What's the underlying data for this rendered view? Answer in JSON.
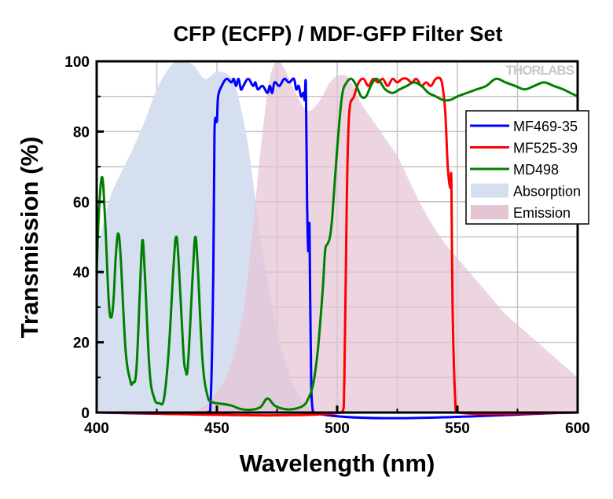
{
  "chart_data": {
    "type": "line",
    "title": "CFP (ECFP) / MDF-GFP Filter Set",
    "xlabel": "Wavelength (nm)",
    "ylabel": "Transmission (%)",
    "xlim": [
      400,
      600
    ],
    "ylim": [
      0,
      100
    ],
    "xticks": [
      400,
      450,
      500,
      550,
      600
    ],
    "yticks": [
      0,
      20,
      40,
      60,
      80,
      100
    ],
    "grid": true,
    "legend_position": "right",
    "watermark": "THORLABS",
    "series": [
      {
        "name": "Absorption",
        "kind": "area",
        "color": "#d6dff0",
        "points": [
          [
            400,
            45
          ],
          [
            405,
            60
          ],
          [
            410,
            68
          ],
          [
            415,
            75
          ],
          [
            420,
            83
          ],
          [
            425,
            92
          ],
          [
            430,
            98
          ],
          [
            434,
            100
          ],
          [
            440,
            99
          ],
          [
            445,
            95
          ],
          [
            450,
            97
          ],
          [
            455,
            96
          ],
          [
            458,
            92
          ],
          [
            462,
            80
          ],
          [
            465,
            66
          ],
          [
            468,
            50
          ],
          [
            471,
            38
          ],
          [
            474,
            27
          ],
          [
            477,
            18
          ],
          [
            480,
            11
          ],
          [
            483,
            6
          ],
          [
            486,
            3
          ],
          [
            490,
            0
          ]
        ]
      },
      {
        "name": "Emission",
        "kind": "area",
        "color": "#e4c3d3",
        "points": [
          [
            440,
            0
          ],
          [
            445,
            2
          ],
          [
            450,
            6
          ],
          [
            455,
            12
          ],
          [
            460,
            25
          ],
          [
            463,
            40
          ],
          [
            466,
            60
          ],
          [
            469,
            80
          ],
          [
            472,
            95
          ],
          [
            475,
            100
          ],
          [
            478,
            98
          ],
          [
            482,
            92
          ],
          [
            486,
            87
          ],
          [
            489,
            86
          ],
          [
            493,
            89
          ],
          [
            497,
            94
          ],
          [
            501,
            96
          ],
          [
            505,
            95
          ],
          [
            510,
            88
          ],
          [
            515,
            83
          ],
          [
            520,
            78
          ],
          [
            525,
            73
          ],
          [
            530,
            66
          ],
          [
            535,
            59
          ],
          [
            540,
            53
          ],
          [
            545,
            48
          ],
          [
            550,
            44
          ],
          [
            555,
            40
          ],
          [
            560,
            36
          ],
          [
            565,
            32
          ],
          [
            570,
            28
          ],
          [
            575,
            25
          ],
          [
            580,
            22
          ],
          [
            585,
            19
          ],
          [
            590,
            16
          ],
          [
            595,
            13
          ],
          [
            600,
            10
          ]
        ]
      },
      {
        "name": "MF469-35",
        "kind": "line",
        "color": "#0000ff",
        "points": [
          [
            400,
            0
          ],
          [
            446,
            0
          ],
          [
            447.5,
            5
          ],
          [
            448.5,
            40
          ],
          [
            449,
            80
          ],
          [
            450,
            83
          ],
          [
            450.5,
            90
          ],
          [
            452,
            93
          ],
          [
            454,
            95
          ],
          [
            456,
            94
          ],
          [
            457,
            95
          ],
          [
            458,
            93
          ],
          [
            459,
            95
          ],
          [
            460,
            92
          ],
          [
            461,
            93
          ],
          [
            463,
            95
          ],
          [
            465,
            93
          ],
          [
            466,
            94
          ],
          [
            467,
            92
          ],
          [
            469,
            93
          ],
          [
            471,
            91
          ],
          [
            472,
            93
          ],
          [
            473,
            91
          ],
          [
            474,
            94
          ],
          [
            476,
            93
          ],
          [
            478,
            95
          ],
          [
            480,
            94
          ],
          [
            482,
            95
          ],
          [
            483,
            92
          ],
          [
            484,
            93
          ],
          [
            485,
            90
          ],
          [
            486,
            91
          ],
          [
            486.5,
            89
          ],
          [
            487,
            93
          ],
          [
            487.5,
            60
          ],
          [
            488,
            46
          ],
          [
            488.5,
            53
          ],
          [
            489,
            20
          ],
          [
            490,
            0
          ],
          [
            600,
            0
          ]
        ]
      },
      {
        "name": "MF525-39",
        "kind": "line",
        "color": "#ff0000",
        "points": [
          [
            400,
            0
          ],
          [
            502,
            0
          ],
          [
            503,
            10
          ],
          [
            504,
            60
          ],
          [
            505,
            85
          ],
          [
            507,
            90
          ],
          [
            509,
            94
          ],
          [
            511,
            95
          ],
          [
            513,
            93
          ],
          [
            515,
            95
          ],
          [
            517,
            94
          ],
          [
            519,
            95
          ],
          [
            521,
            93
          ],
          [
            523,
            95
          ],
          [
            525,
            94
          ],
          [
            527,
            95
          ],
          [
            529,
            95
          ],
          [
            531,
            94
          ],
          [
            533,
            95
          ],
          [
            535,
            93
          ],
          [
            537,
            94
          ],
          [
            539,
            93
          ],
          [
            541,
            95
          ],
          [
            543,
            95
          ],
          [
            544,
            92
          ],
          [
            545,
            85
          ],
          [
            546,
            70
          ],
          [
            547,
            64
          ],
          [
            547.5,
            66
          ],
          [
            548,
            30
          ],
          [
            549,
            5
          ],
          [
            550,
            0
          ],
          [
            600,
            0
          ]
        ]
      },
      {
        "name": "MD498",
        "kind": "line",
        "color": "#008000",
        "points": [
          [
            400,
            40
          ],
          [
            401,
            58
          ],
          [
            402.3,
            67
          ],
          [
            403.5,
            55
          ],
          [
            405,
            32
          ],
          [
            406,
            27
          ],
          [
            407,
            32
          ],
          [
            408,
            45
          ],
          [
            409,
            51
          ],
          [
            410,
            44
          ],
          [
            412,
            18
          ],
          [
            414,
            9
          ],
          [
            415,
            8.5
          ],
          [
            416.5,
            12
          ],
          [
            418,
            35
          ],
          [
            419,
            49
          ],
          [
            420,
            40
          ],
          [
            422,
            12
          ],
          [
            424,
            4
          ],
          [
            426,
            2.7
          ],
          [
            428,
            4
          ],
          [
            430,
            18
          ],
          [
            432,
            42
          ],
          [
            433,
            50
          ],
          [
            434,
            44
          ],
          [
            436,
            18
          ],
          [
            437,
            12
          ],
          [
            438,
            14
          ],
          [
            440,
            40
          ],
          [
            441,
            50
          ],
          [
            442,
            42
          ],
          [
            444,
            15
          ],
          [
            446,
            5
          ],
          [
            448,
            3
          ],
          [
            452,
            2.5
          ],
          [
            456,
            2
          ],
          [
            460,
            1
          ],
          [
            464,
            0.8
          ],
          [
            468,
            1.5
          ],
          [
            471,
            4
          ],
          [
            474,
            2
          ],
          [
            478,
            1
          ],
          [
            482,
            1
          ],
          [
            486,
            2
          ],
          [
            488,
            4
          ],
          [
            490,
            8
          ],
          [
            492,
            18
          ],
          [
            494,
            35
          ],
          [
            495,
            46
          ],
          [
            496,
            48
          ],
          [
            497,
            50
          ],
          [
            498,
            56
          ],
          [
            500,
            75
          ],
          [
            502,
            90
          ],
          [
            504,
            94
          ],
          [
            506,
            95
          ],
          [
            508,
            93
          ],
          [
            510,
            90
          ],
          [
            512,
            90
          ],
          [
            514,
            93
          ],
          [
            516,
            95
          ],
          [
            518,
            94
          ],
          [
            520,
            92
          ],
          [
            523,
            91
          ],
          [
            526,
            92
          ],
          [
            529,
            93
          ],
          [
            532,
            94
          ],
          [
            535,
            93
          ],
          [
            538,
            91
          ],
          [
            541,
            90
          ],
          [
            544,
            89
          ],
          [
            547,
            89
          ],
          [
            550,
            90
          ],
          [
            554,
            91
          ],
          [
            558,
            92
          ],
          [
            562,
            93
          ],
          [
            566,
            95
          ],
          [
            570,
            94
          ],
          [
            574,
            93
          ],
          [
            578,
            92
          ],
          [
            582,
            93
          ],
          [
            586,
            94
          ],
          [
            590,
            93
          ],
          [
            594,
            92
          ],
          [
            597,
            91
          ],
          [
            600,
            90
          ]
        ]
      }
    ]
  }
}
